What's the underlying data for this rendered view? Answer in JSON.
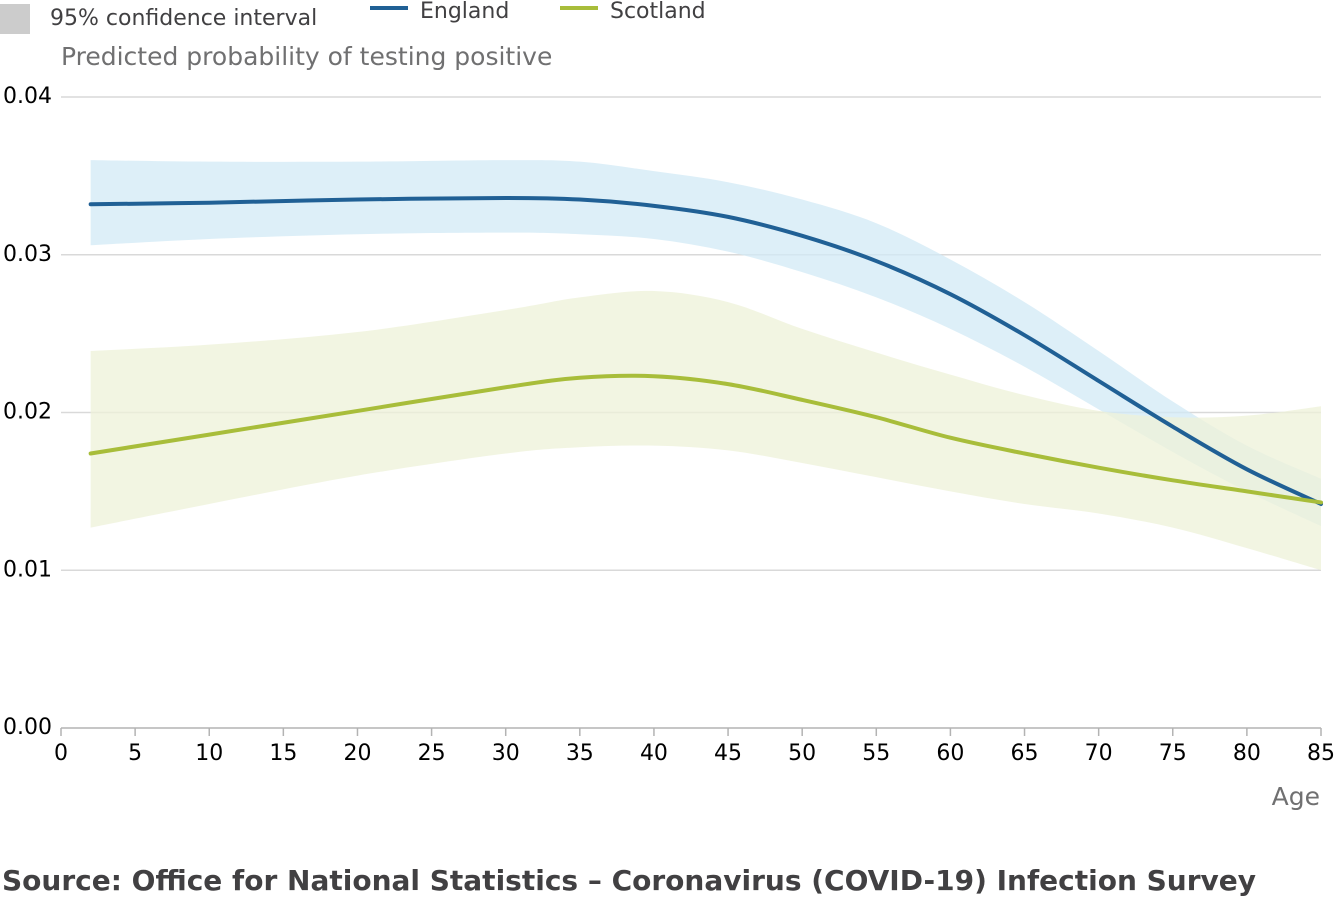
{
  "legend": {
    "ci_label": "95% confidence interval",
    "ci_swatch_color": "#cccccc",
    "items": [
      {
        "label": "England",
        "color": "#206095"
      },
      {
        "label": "Scotland",
        "color": "#a8bd3a"
      }
    ]
  },
  "source": "Source: Office for National Statistics – Coronavirus (COVID-19) Infection Survey",
  "chart_data": {
    "type": "line",
    "title": "",
    "ylabel": "Predicted probability of testing positive",
    "xlabel": "Age",
    "xlim": [
      0,
      85
    ],
    "ylim": [
      0,
      0.04
    ],
    "xticks": [
      0,
      5,
      10,
      15,
      20,
      25,
      30,
      35,
      40,
      45,
      50,
      55,
      60,
      65,
      70,
      75,
      80,
      85
    ],
    "xtick_labels": [
      "0",
      "5",
      "10",
      "15",
      "20",
      "25",
      "30",
      "35",
      "40",
      "45",
      "50",
      "55",
      "60",
      "65",
      "70",
      "75",
      "80",
      "85"
    ],
    "yticks": [
      0,
      0.01,
      0.02,
      0.03,
      0.04
    ],
    "ytick_labels": [
      "0.00",
      "0.01",
      "0.02",
      "0.03",
      "0.04"
    ],
    "grid": true,
    "legend_position": "top-left",
    "x": [
      2,
      10,
      20,
      30,
      35,
      40,
      45,
      50,
      55,
      60,
      65,
      70,
      75,
      80,
      85
    ],
    "series": [
      {
        "name": "England",
        "color": "#206095",
        "band_color": "#d2eaf5",
        "values": [
          0.0332,
          0.0333,
          0.0335,
          0.0336,
          0.0335,
          0.0331,
          0.0324,
          0.0312,
          0.0296,
          0.0275,
          0.0249,
          0.022,
          0.0191,
          0.0164,
          0.0142
        ],
        "lower": [
          0.0306,
          0.031,
          0.0313,
          0.0314,
          0.0313,
          0.031,
          0.0302,
          0.0289,
          0.0273,
          0.0253,
          0.0229,
          0.0202,
          0.0175,
          0.015,
          0.0128
        ],
        "upper": [
          0.036,
          0.0359,
          0.0359,
          0.036,
          0.0359,
          0.0353,
          0.0346,
          0.0335,
          0.032,
          0.0297,
          0.027,
          0.0239,
          0.0207,
          0.0179,
          0.0158
        ]
      },
      {
        "name": "Scotland",
        "color": "#a8bd3a",
        "band_color": "#edf1d8",
        "values": [
          0.0174,
          0.0186,
          0.0201,
          0.0216,
          0.0222,
          0.0223,
          0.0218,
          0.0208,
          0.0197,
          0.0184,
          0.0174,
          0.0165,
          0.0157,
          0.015,
          0.0143
        ],
        "lower": [
          0.0127,
          0.0142,
          0.016,
          0.0174,
          0.0178,
          0.0179,
          0.0176,
          0.0168,
          0.0159,
          0.015,
          0.0142,
          0.0136,
          0.0127,
          0.0114,
          0.01
        ],
        "upper": [
          0.0239,
          0.0243,
          0.0251,
          0.0265,
          0.0273,
          0.0277,
          0.027,
          0.0253,
          0.0238,
          0.0224,
          0.0211,
          0.0201,
          0.0197,
          0.0198,
          0.0204
        ]
      }
    ]
  }
}
